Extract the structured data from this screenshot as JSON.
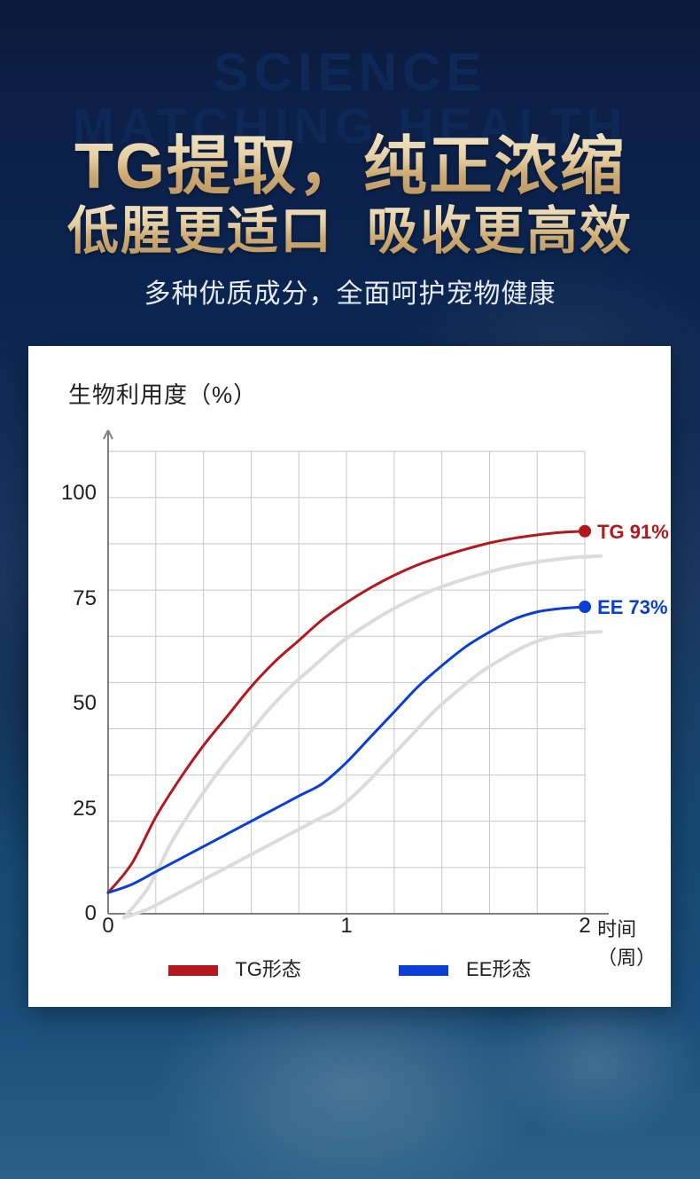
{
  "watermark": {
    "line1": "SCIENCE",
    "line2": "MATCHING HEALTH",
    "color": "#0e2858"
  },
  "headline": {
    "line1": "TG提取，纯正浓缩",
    "line2": "低腥更适口 吸收更高效",
    "subtitle": "多种优质成分，全面呵护宠物健康",
    "gradient_top": "#f2e3c5",
    "gradient_bottom": "#b8945f",
    "subtitle_color": "#e8ecf2"
  },
  "background": {
    "gradient_stops": [
      "#0a1a3a",
      "#0d2048",
      "#0a2550",
      "#1a3862",
      "#164872",
      "#1a4e7a",
      "#2a6088"
    ]
  },
  "chart": {
    "type": "line",
    "title": "生物利用度（%）",
    "title_fontsize": 26,
    "background_color": "#ffffff",
    "grid_color": "#c7c7c7",
    "axis_color": "#808080",
    "x": {
      "label": "时间（周）",
      "ticks": [
        0,
        1,
        2
      ],
      "lim": [
        0,
        2.1
      ],
      "fontsize": 24
    },
    "y": {
      "ticks": [
        0,
        25,
        50,
        75,
        100
      ],
      "lim": [
        0,
        115
      ],
      "fontsize": 24
    },
    "series": [
      {
        "name": "TG形态",
        "color": "#b4181f",
        "line_width": 3,
        "end_label": "TG 91%",
        "end_marker_radius": 7,
        "points": [
          [
            0.0,
            5
          ],
          [
            0.1,
            12
          ],
          [
            0.2,
            23
          ],
          [
            0.3,
            32
          ],
          [
            0.4,
            40
          ],
          [
            0.5,
            47
          ],
          [
            0.6,
            54
          ],
          [
            0.7,
            60
          ],
          [
            0.8,
            65
          ],
          [
            0.9,
            70
          ],
          [
            1.0,
            74
          ],
          [
            1.1,
            77.5
          ],
          [
            1.2,
            80.5
          ],
          [
            1.3,
            83
          ],
          [
            1.4,
            85
          ],
          [
            1.5,
            86.7
          ],
          [
            1.6,
            88.2
          ],
          [
            1.7,
            89.3
          ],
          [
            1.8,
            90.1
          ],
          [
            1.9,
            90.7
          ],
          [
            2.0,
            91
          ]
        ]
      },
      {
        "name": "EE形态",
        "color": "#0a3fd6",
        "line_width": 3,
        "end_label": "EE 73%",
        "end_marker_radius": 7,
        "points": [
          [
            0.0,
            5
          ],
          [
            0.1,
            7
          ],
          [
            0.2,
            10
          ],
          [
            0.3,
            13
          ],
          [
            0.4,
            16
          ],
          [
            0.5,
            19
          ],
          [
            0.6,
            22
          ],
          [
            0.7,
            25
          ],
          [
            0.8,
            28
          ],
          [
            0.9,
            31
          ],
          [
            1.0,
            36
          ],
          [
            1.1,
            42
          ],
          [
            1.2,
            48
          ],
          [
            1.3,
            54
          ],
          [
            1.4,
            59
          ],
          [
            1.5,
            63.5
          ],
          [
            1.6,
            67
          ],
          [
            1.7,
            70
          ],
          [
            1.8,
            71.8
          ],
          [
            1.9,
            72.6
          ],
          [
            2.0,
            73
          ]
        ]
      }
    ],
    "shadow": {
      "color": "#dcdcdc",
      "offset_x": 18,
      "offset_y": 28,
      "line_width": 4
    },
    "legend": {
      "swatch_w": 56,
      "swatch_h": 12,
      "fontsize": 22,
      "items": [
        "TG形态",
        "EE形态"
      ]
    }
  }
}
